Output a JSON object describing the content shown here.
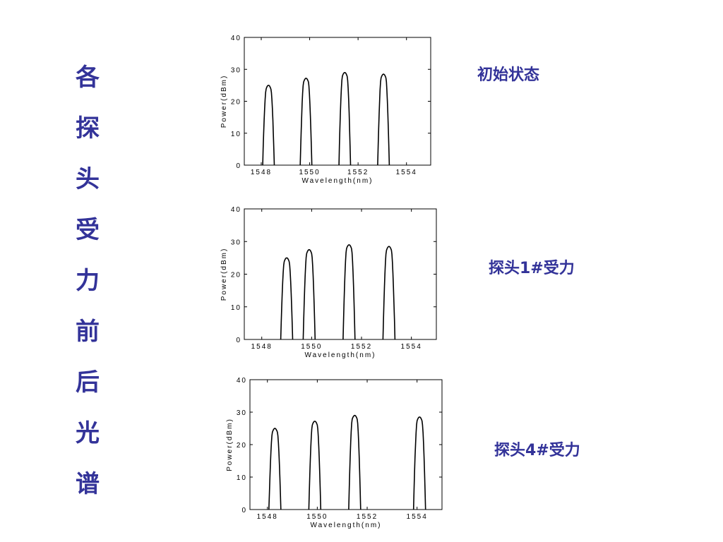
{
  "title_chars": [
    "各",
    "探",
    "头",
    "受",
    "力",
    "前",
    "后",
    "光",
    "谱"
  ],
  "captions": [
    "初始状态",
    "探头1#受力",
    "探头4#受力"
  ],
  "chart_data": [
    {
      "type": "line",
      "caption": "初始状态",
      "xlabel": "Wavelength(nm)",
      "ylabel": "Power(dBm)",
      "xlim": [
        1547.3,
        1555.0
      ],
      "ylim": [
        0,
        40
      ],
      "xticks": [
        1548,
        1550,
        1552,
        1554
      ],
      "yticks": [
        0,
        10,
        20,
        30,
        40
      ],
      "peaks": [
        {
          "center": 1548.3,
          "peak_dbm": 25.0
        },
        {
          "center": 1549.85,
          "peak_dbm": 27.2
        },
        {
          "center": 1551.45,
          "peak_dbm": 29.0
        },
        {
          "center": 1553.05,
          "peak_dbm": 28.5
        }
      ]
    },
    {
      "type": "line",
      "caption": "探头1#受力",
      "xlabel": "Wavelength(nm)",
      "ylabel": "Power(dBm)",
      "xlim": [
        1547.3,
        1555.0
      ],
      "ylim": [
        0,
        40
      ],
      "xticks": [
        1548,
        1550,
        1552,
        1554
      ],
      "yticks": [
        0,
        10,
        20,
        30,
        40
      ],
      "peaks": [
        {
          "center": 1549.0,
          "peak_dbm": 25.0
        },
        {
          "center": 1549.9,
          "peak_dbm": 27.5
        },
        {
          "center": 1551.5,
          "peak_dbm": 29.0
        },
        {
          "center": 1553.1,
          "peak_dbm": 28.5
        }
      ]
    },
    {
      "type": "line",
      "caption": "探头4#受力",
      "xlabel": "Wavelength(nm)",
      "ylabel": "Power(dBm)",
      "xlim": [
        1547.3,
        1555.0
      ],
      "ylim": [
        0,
        40
      ],
      "xticks": [
        1548,
        1550,
        1552,
        1554
      ],
      "yticks": [
        0,
        10,
        20,
        30,
        40
      ],
      "peaks": [
        {
          "center": 1548.3,
          "peak_dbm": 25.0
        },
        {
          "center": 1549.9,
          "peak_dbm": 27.2
        },
        {
          "center": 1551.5,
          "peak_dbm": 29.0
        },
        {
          "center": 1554.1,
          "peak_dbm": 28.5
        }
      ]
    }
  ]
}
